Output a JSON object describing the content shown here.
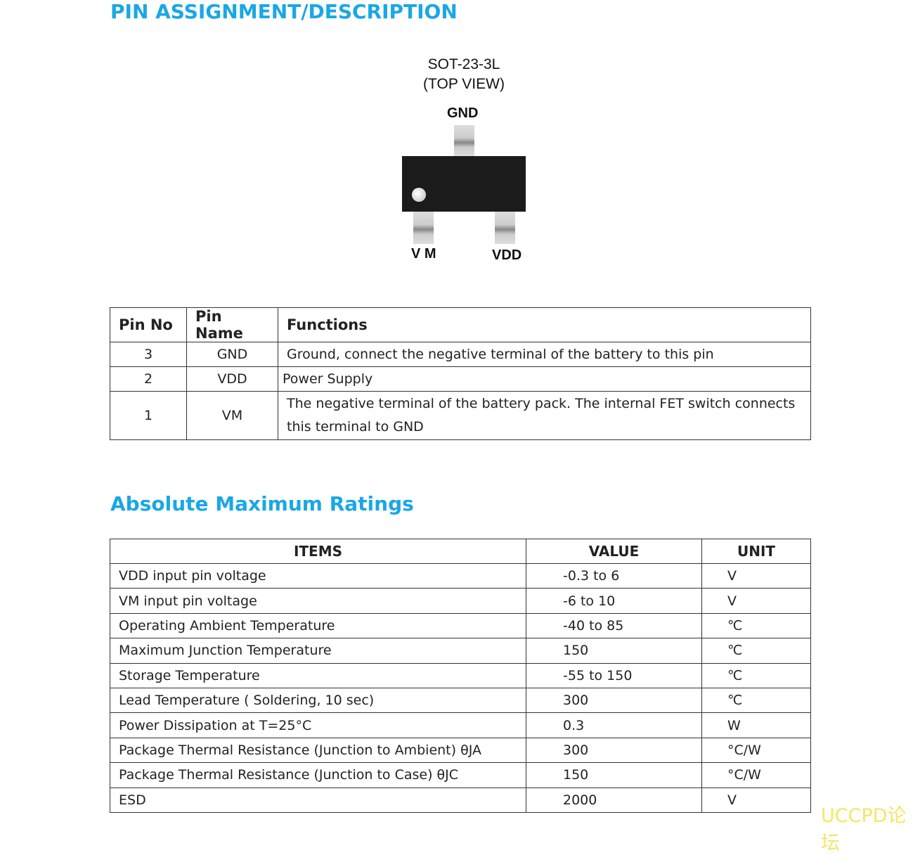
{
  "pin_section": {
    "title": "PIN ASSIGNMENT/DESCRIPTION",
    "package": "SOT-23-3L",
    "view": "(TOP VIEW)",
    "pins": {
      "top": "GND",
      "bottom_left": "V M",
      "bottom_right": "VDD"
    },
    "headers": [
      "Pin No",
      "Pin Name",
      "Functions"
    ],
    "rows": [
      [
        "3",
        "GND",
        "Ground, connect the negative terminal of the battery to this pin"
      ],
      [
        "2",
        "VDD",
        "Power Supply"
      ],
      [
        "1",
        "VM",
        "The negative terminal of the battery pack. The internal FET switch connects this terminal to GND"
      ]
    ]
  },
  "ratings": {
    "title": "Absolute Maximum Ratings",
    "headers": [
      "ITEMS",
      "VALUE",
      "UNIT"
    ],
    "rows": [
      [
        "VDD input pin voltage",
        "-0.3 to 6",
        "V"
      ],
      [
        "VM input pin voltage",
        "-6 to 10",
        "V"
      ],
      [
        "Operating Ambient Temperature",
        "-40 to 85",
        "℃"
      ],
      [
        "Maximum Junction Temperature",
        "150",
        "℃"
      ],
      [
        "Storage Temperature",
        "-55 to 150",
        "℃"
      ],
      [
        "Lead Temperature ( Soldering, 10 sec)",
        "300",
        "℃"
      ],
      [
        "Power Dissipation at T=25°C",
        "0.3",
        "W"
      ],
      [
        "Package Thermal Resistance (Junction to Ambient) θJA",
        "300",
        "°C/W"
      ],
      [
        "Package Thermal Resistance (Junction to Case) θJC",
        "150",
        "°C/W"
      ],
      [
        "ESD",
        "2000",
        "V"
      ]
    ]
  },
  "watermark": "UCCPD论坛"
}
